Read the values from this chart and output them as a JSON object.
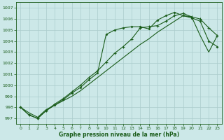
{
  "title": "Graphe pression niveau de la mer (hPa)",
  "bg_color": "#cce8e8",
  "grid_color": "#b0d8d8",
  "line_color": "#1a5c1a",
  "xlim": [
    -0.5,
    23.5
  ],
  "ylim": [
    996.5,
    1007.5
  ],
  "yticks": [
    997,
    998,
    999,
    1000,
    1001,
    1002,
    1003,
    1004,
    1005,
    1006,
    1007
  ],
  "xticks": [
    0,
    1,
    2,
    3,
    4,
    5,
    6,
    7,
    8,
    9,
    10,
    11,
    12,
    13,
    14,
    15,
    16,
    17,
    18,
    19,
    20,
    21,
    22,
    23
  ],
  "series1_x": [
    0,
    1,
    2,
    3,
    4,
    5,
    6,
    7,
    8,
    9,
    10,
    11,
    12,
    13,
    14,
    15,
    16,
    17,
    18,
    19,
    20,
    21,
    22,
    23
  ],
  "series1_y": [
    998.0,
    997.3,
    997.0,
    997.7,
    998.3,
    998.8,
    999.4,
    1000.0,
    1000.7,
    1001.3,
    1002.1,
    1002.9,
    1003.5,
    1004.2,
    1005.2,
    1005.3,
    1005.4,
    1005.8,
    1006.3,
    1006.5,
    1006.2,
    1006.0,
    1005.2,
    1004.5
  ],
  "series2_x": [
    0,
    1,
    2,
    3,
    4,
    5,
    6,
    7,
    8,
    9,
    10,
    11,
    12,
    13,
    14,
    15,
    16,
    17,
    18,
    19,
    20,
    21,
    22,
    23
  ],
  "series2_y": [
    998.0,
    997.3,
    997.0,
    997.7,
    998.2,
    998.7,
    999.3,
    999.8,
    1000.5,
    1001.1,
    1004.6,
    1005.0,
    1005.2,
    1005.3,
    1005.3,
    1005.1,
    1005.9,
    1006.3,
    1006.6,
    1006.3,
    1006.1,
    1005.8,
    1004.0,
    1003.5
  ],
  "series3_x": [
    0,
    1,
    2,
    3,
    4,
    5,
    6,
    7,
    8,
    9,
    10,
    11,
    12,
    13,
    14,
    15,
    16,
    17,
    18,
    19,
    20,
    21,
    22,
    23
  ],
  "series3_y": [
    998.0,
    997.5,
    997.1,
    997.8,
    998.2,
    998.6,
    999.0,
    999.5,
    1000.1,
    1000.7,
    1001.3,
    1001.9,
    1002.5,
    1003.1,
    1003.7,
    1004.2,
    1004.8,
    1005.3,
    1005.8,
    1006.3,
    1006.2,
    1004.5,
    1003.0,
    1004.5
  ]
}
